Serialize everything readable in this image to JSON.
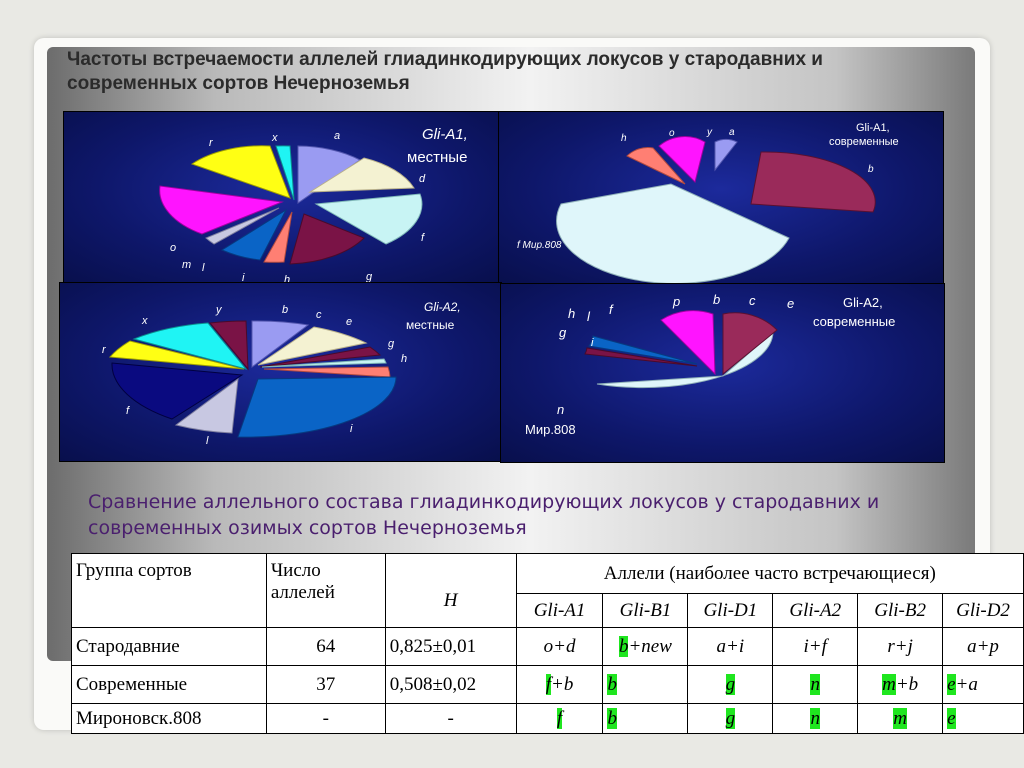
{
  "slide": {
    "title": "Частоты встречаемости аллелей глиадинкодирующих локусов у стародавних и современных сортов Нечерноземья",
    "subtitle": "Сравнение аллельного состава глиадинкодирующих локусов у стародавних и современных озимых сортов Нечерноземья"
  },
  "chart_data": [
    {
      "type": "pie",
      "title": "Gli-A1, местные",
      "categories": [
        "a",
        "d",
        "f",
        "g",
        "h",
        "i",
        "l",
        "m",
        "o",
        "r",
        "x"
      ],
      "values": [
        10,
        14,
        14,
        16,
        4,
        6,
        1,
        1,
        3,
        19,
        3
      ],
      "colors": [
        "#9a9bf2",
        "#f4f2d2",
        "#c8f4f4",
        "#7a1346",
        "#ff7f73",
        "#0a64c6",
        "#c8c8e2",
        "#0a2a8a",
        "#ff14ff",
        "#ffff14",
        "#1ff4f4"
      ]
    },
    {
      "type": "pie",
      "title": "Gli-A1, современные",
      "categories": [
        "a",
        "b",
        "f Мир.808",
        "h",
        "o",
        "y"
      ],
      "values": [
        3,
        25,
        55,
        4,
        10,
        3
      ],
      "colors": [
        "#9a9bf2",
        "#9a2a5a",
        "#dff6fa",
        "#ff7f73",
        "#ff14ff",
        "#1a1a80"
      ],
      "extra_labels": [
        "f Мир.808"
      ]
    },
    {
      "type": "pie",
      "title": "Gli-A2, местные",
      "categories": [
        "b",
        "c",
        "e",
        "g",
        "h",
        "i",
        "l",
        "f",
        "r",
        "x",
        "y"
      ],
      "values": [
        8,
        9,
        3,
        2,
        3,
        24,
        6,
        16,
        9,
        12,
        7
      ],
      "colors": [
        "#9a9bf2",
        "#f4f2d2",
        "#7a1346",
        "#c8f4f4",
        "#ff7f73",
        "#0a64c6",
        "#c8c8e2",
        "#0a0a80",
        "#ffff14",
        "#1ff4f4",
        "#7a1346"
      ]
    },
    {
      "type": "pie",
      "title": "Gli-A2, современные",
      "categories": [
        "b",
        "c",
        "e",
        "n Мир.808",
        "g",
        "h",
        "i",
        "l",
        "f",
        "p"
      ],
      "values": [
        8,
        4,
        2,
        65,
        1,
        1,
        3,
        1,
        2,
        13
      ],
      "colors": [
        "#9a2a5a",
        "#9a2a5a",
        "#9a2a5a",
        "#dff6fa",
        "#0a64c6",
        "#7a1346",
        "#0a64c6",
        "#0a0a80",
        "#7a1346",
        "#ff14ff"
      ]
    }
  ],
  "pie_labels": {
    "c1": {
      "title_1": "Gli-A1,",
      "title_2": "местные",
      "a": "a",
      "d": "d",
      "f": "f",
      "g": "g",
      "h": "h",
      "i": "i",
      "l": "l",
      "m": "m",
      "o": "o",
      "r": "r",
      "x": "x"
    },
    "c2": {
      "title_1": "Gli-A1,",
      "title_2": "современные",
      "a": "a",
      "b": "b",
      "f": "f  Мир.808",
      "h": "h",
      "o": "o",
      "y": "y"
    },
    "c3": {
      "title_1": "Gli-A2,",
      "title_2": "местные",
      "b": "b",
      "c": "c",
      "e": "e",
      "g": "g",
      "h": "h",
      "i": "i",
      "l": "l",
      "f": "f",
      "r": "r",
      "x": "x",
      "y": "y"
    },
    "c4": {
      "title_1": "Gli-A2,",
      "title_2": "современные",
      "p": "p",
      "b": "b",
      "c": "c",
      "e": "e",
      "h": "h",
      "l": "l",
      "f": "f",
      "g": "g",
      "i": "i",
      "n": "n",
      "mir": "Мир.808"
    }
  },
  "table": {
    "h_group": "Группа сортов",
    "h_count": "Число аллелей",
    "h_H": "H",
    "h_alleles": "Аллели (наиболее часто встречающиеся)",
    "loci": [
      "Gli-A1",
      "Gli-B1",
      "Gli-D1",
      "Gli-A2",
      "Gli-B2",
      "Gli-D2"
    ],
    "rows": [
      {
        "group": "Стародавние",
        "count": "64",
        "H": "0,825±0,01",
        "cells": [
          {
            "p": "",
            "q": "o+d"
          },
          {
            "p": "b",
            "q": "+new"
          },
          {
            "p": "",
            "q": "a+i"
          },
          {
            "p": "",
            "q": "i+f"
          },
          {
            "p": "",
            "q": "r+j"
          },
          {
            "p": "",
            "q": "a+p"
          }
        ]
      },
      {
        "group": "Современные",
        "count": "37",
        "H": "0,508±0,02",
        "cells": [
          {
            "p": "f",
            "q": "+b"
          },
          {
            "p": "b",
            "q": ""
          },
          {
            "p": "g",
            "q": ""
          },
          {
            "p": "n",
            "q": ""
          },
          {
            "p": "m",
            "q": "+b"
          },
          {
            "p": "e",
            "q": "+a"
          }
        ]
      },
      {
        "group": "Мироновск.808",
        "count": "-",
        "H": "-",
        "cells": [
          {
            "p": "f",
            "q": ""
          },
          {
            "p": "b",
            "q": ""
          },
          {
            "p": "g",
            "q": ""
          },
          {
            "p": "n",
            "q": ""
          },
          {
            "p": "m",
            "q": ""
          },
          {
            "p": "e",
            "q": ""
          }
        ]
      }
    ]
  }
}
